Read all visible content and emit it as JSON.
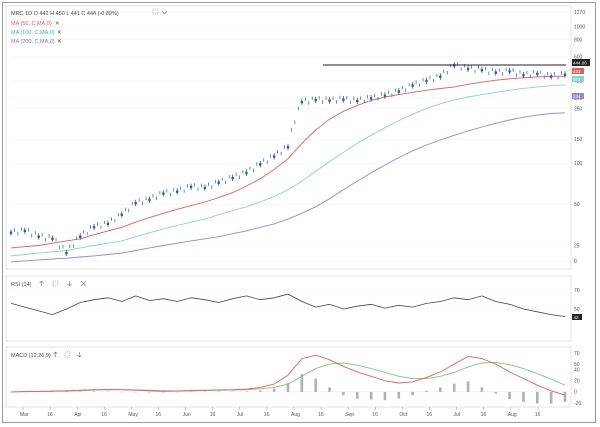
{
  "legend": {
    "symbol_line": "MRC 1D  O 442  H 450  L 441  C 444  (-0.89%)",
    "ma50": "MA (50, C,MA,0)",
    "ma100": "MA (100, C,MA,0)",
    "ma200": "MA (200, C,MA,0)",
    "rsi": "RSI (14)",
    "macd": "MACD (12,26,9)",
    "remove_glyph": "✕"
  },
  "price_axis": {
    "ticks": [
      "1270",
      "1000",
      "800",
      "600",
      "400",
      "300",
      "250",
      "150",
      "100",
      "50",
      "25",
      "0"
    ],
    "last_price_tag": "444.00",
    "ma_tags": [
      "433",
      "374",
      "234"
    ]
  },
  "rsi_axis": {
    "ticks": [
      "70",
      "50"
    ],
    "current_tag": "42"
  },
  "macd_axis": {
    "ticks": [
      "70",
      "50",
      "40",
      "20",
      "0",
      "-20"
    ]
  },
  "time_axis": {
    "labels": [
      "Mar",
      "16",
      "Apr",
      "16",
      "May",
      "16",
      "Jun",
      "16",
      "Jul",
      "16",
      "Aug",
      "16",
      "Sep",
      "16",
      "Oct",
      "16",
      "Jul",
      "16",
      "Aug",
      "16"
    ]
  },
  "colors": {
    "price": "#2b5f9e",
    "ma50": "#e0605a",
    "ma100": "#8fd0c8",
    "ma200": "#9a86c8",
    "rsi": "#444444",
    "macd": "#e0605a",
    "signal": "#7cc48a",
    "histogram": "#b0b0b0",
    "resistance": "#222222"
  },
  "chart_data": [
    {
      "type": "line",
      "title": "MRC 1D",
      "x": [
        0,
        5,
        10,
        15,
        20,
        25,
        30,
        35,
        40,
        45,
        50,
        55,
        60,
        65,
        70,
        75,
        80,
        85,
        90,
        95,
        100,
        105,
        110,
        115,
        120,
        125,
        130,
        135,
        140,
        145,
        150,
        155,
        160,
        165,
        170,
        175,
        180,
        185,
        190,
        195,
        200
      ],
      "series": [
        {
          "name": "MRC",
          "values": [
            31,
            32,
            29,
            28,
            22,
            29,
            34,
            36,
            42,
            51,
            54,
            60,
            62,
            67,
            66,
            72,
            78,
            85,
            98,
            112,
            131,
            280,
            290,
            287,
            292,
            285,
            298,
            312,
            335,
            370,
            400,
            430,
            520,
            490,
            480,
            460,
            470,
            440,
            450,
            430,
            444
          ]
        },
        {
          "name": "MA (50, C,MA,0)",
          "values": [
            24,
            24.5,
            25,
            26,
            27,
            28,
            30,
            32,
            34,
            37,
            40,
            43,
            46,
            49,
            52,
            56,
            61,
            68,
            77,
            90,
            108,
            140,
            175,
            210,
            240,
            265,
            288,
            305,
            318,
            330,
            342,
            352,
            362,
            378,
            392,
            405,
            415,
            422,
            428,
            432,
            433
          ]
        },
        {
          "name": "MA (100, C,MA,0)",
          "values": [
            21,
            21.5,
            22,
            22.5,
            23,
            24,
            25,
            26,
            27,
            29,
            31,
            33,
            35,
            37,
            39,
            42,
            45,
            48,
            52,
            57,
            64,
            74,
            87,
            103,
            120,
            140,
            160,
            182,
            205,
            228,
            252,
            272,
            290,
            305,
            318,
            330,
            342,
            353,
            362,
            369,
            374
          ]
        },
        {
          "name": "MA (200, C,MA,0)",
          "values": [
            19,
            19.3,
            19.6,
            19.9,
            20.2,
            20.6,
            21,
            21.5,
            22,
            23,
            24,
            25,
            26,
            27,
            28,
            29,
            30.5,
            32,
            34,
            36,
            39,
            43,
            48,
            55,
            64,
            74,
            85,
            97,
            110,
            123,
            136,
            148,
            160,
            172,
            184,
            196,
            207,
            217,
            225,
            231,
            234
          ]
        }
      ],
      "ylim": [
        0,
        1270
      ]
    },
    {
      "type": "line",
      "title": "RSI (14)",
      "x": [
        0,
        5,
        10,
        15,
        20,
        25,
        30,
        35,
        40,
        45,
        50,
        55,
        60,
        65,
        70,
        75,
        80,
        85,
        90,
        95,
        100,
        105,
        110,
        115,
        120,
        125,
        130,
        135,
        140,
        145,
        150,
        155,
        160,
        165,
        170,
        175,
        180,
        185,
        190,
        195,
        200
      ],
      "series": [
        {
          "name": "RSI (14)",
          "values": [
            56,
            52,
            48,
            44,
            50,
            57,
            60,
            62,
            58,
            64,
            59,
            61,
            58,
            62,
            60,
            57,
            61,
            64,
            60,
            62,
            66,
            58,
            52,
            55,
            50,
            53,
            55,
            51,
            54,
            52,
            56,
            58,
            62,
            60,
            64,
            58,
            55,
            50,
            47,
            44,
            42
          ]
        }
      ],
      "ylim": [
        20,
        80
      ]
    },
    {
      "type": "line",
      "title": "MACD (12,26,9)",
      "x": [
        0,
        5,
        10,
        15,
        20,
        25,
        30,
        35,
        40,
        45,
        50,
        55,
        60,
        65,
        70,
        75,
        80,
        85,
        90,
        95,
        100,
        105,
        110,
        115,
        120,
        125,
        130,
        135,
        140,
        145,
        150,
        155,
        160,
        165,
        170,
        175,
        180,
        185,
        190,
        195,
        200
      ],
      "series": [
        {
          "name": "MACD",
          "values": [
            0,
            0.5,
            1,
            1.5,
            2,
            3,
            4,
            4.5,
            4,
            3,
            2,
            1,
            1.5,
            2.5,
            3,
            3.5,
            4,
            5,
            8,
            14,
            30,
            60,
            66,
            58,
            46,
            36,
            28,
            20,
            16,
            18,
            26,
            36,
            50,
            64,
            60,
            50,
            36,
            24,
            12,
            2,
            -6
          ]
        },
        {
          "name": "Signal",
          "values": [
            0,
            0.3,
            0.7,
            1.1,
            1.5,
            2.2,
            3,
            3.8,
            4,
            3.7,
            3,
            2.2,
            1.8,
            2,
            2.4,
            2.9,
            3.3,
            4,
            5.5,
            8,
            14,
            28,
            42,
            50,
            52,
            48,
            42,
            35,
            28,
            24,
            24,
            28,
            35,
            45,
            52,
            53,
            49,
            42,
            33,
            23,
            12
          ]
        },
        {
          "name": "Histogram",
          "values": [
            0,
            0.2,
            0.3,
            0.4,
            0.5,
            0.8,
            1,
            0.7,
            0,
            -0.7,
            -1,
            -1.2,
            -0.3,
            0.5,
            0.6,
            0.6,
            0.7,
            1,
            2.5,
            6,
            16,
            32,
            24,
            8,
            -6,
            -12,
            -14,
            -15,
            -12,
            -6,
            2,
            8,
            15,
            19,
            8,
            -3,
            -13,
            -18,
            -21,
            -21,
            -18
          ]
        }
      ],
      "ylim": [
        -20,
        70
      ]
    }
  ]
}
